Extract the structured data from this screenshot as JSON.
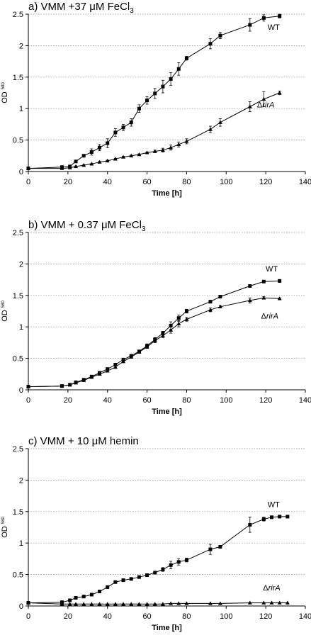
{
  "chart_data": [
    {
      "type": "line",
      "title": "a) VMM +37 μM FeCl",
      "title_sub": "3",
      "xlabel": "Time [h]",
      "ylabel": "OD",
      "ylabel_sub": "580",
      "xlim": [
        0,
        140
      ],
      "ylim": [
        0,
        2.5
      ],
      "xticks": [
        0,
        20,
        40,
        60,
        80,
        100,
        120,
        140
      ],
      "yticks": [
        0,
        0.5,
        1,
        1.5,
        2,
        2.5
      ],
      "ytick_labels": [
        "0",
        "0.5",
        "1",
        "1.5",
        "2",
        "2.5"
      ],
      "grid": "horizontal-dotted",
      "series": [
        {
          "name": "WT",
          "marker": "square",
          "x": [
            0,
            17,
            21,
            24,
            28,
            32,
            36,
            40,
            44,
            48,
            52,
            56,
            60,
            64,
            68,
            72,
            76,
            80,
            92,
            97,
            112,
            119,
            127
          ],
          "y": [
            0.05,
            0.07,
            0.08,
            0.16,
            0.25,
            0.31,
            0.38,
            0.45,
            0.62,
            0.7,
            0.78,
            1.0,
            1.13,
            1.24,
            1.35,
            1.47,
            1.63,
            1.8,
            2.03,
            2.16,
            2.33,
            2.44,
            2.47
          ],
          "err": [
            0,
            0.01,
            0.01,
            0.02,
            0.02,
            0.05,
            0.05,
            0.07,
            0.06,
            0.05,
            0.06,
            0.06,
            0.06,
            0.08,
            0.1,
            0.1,
            0.1,
            0.03,
            0.08,
            0.05,
            0.1,
            0.05,
            0.03
          ]
        },
        {
          "name": "ΔrirA",
          "marker": "triangle",
          "x": [
            0,
            17,
            21,
            24,
            28,
            32,
            36,
            40,
            44,
            48,
            52,
            56,
            60,
            64,
            68,
            72,
            76,
            80,
            92,
            97,
            112,
            119,
            127
          ],
          "y": [
            0.05,
            0.05,
            0.06,
            0.08,
            0.1,
            0.12,
            0.15,
            0.17,
            0.2,
            0.23,
            0.25,
            0.27,
            0.3,
            0.32,
            0.34,
            0.38,
            0.43,
            0.48,
            0.67,
            0.78,
            1.03,
            1.15,
            1.25
          ],
          "err": [
            0,
            0,
            0,
            0.01,
            0.01,
            0.01,
            0.01,
            0.01,
            0.01,
            0.01,
            0.01,
            0.01,
            0.01,
            0.02,
            0.03,
            0.04,
            0.04,
            0.04,
            0.05,
            0.06,
            0.08,
            0.12,
            0.03
          ]
        }
      ],
      "labels": [
        {
          "text": "WT",
          "series": 0,
          "x": 124,
          "y": 2.25
        },
        {
          "text": "ΔrirA",
          "series": 1,
          "x": 120,
          "y": 1.02
        }
      ]
    },
    {
      "type": "line",
      "title": "b) VMM + 0.37 μM FeCl",
      "title_sub": "3",
      "xlabel": "Time [h]",
      "ylabel": "OD",
      "ylabel_sub": "580",
      "xlim": [
        0,
        140
      ],
      "ylim": [
        0,
        2.5
      ],
      "xticks": [
        0,
        20,
        40,
        60,
        80,
        100,
        120,
        140
      ],
      "yticks": [
        0,
        0.5,
        1,
        1.5,
        2,
        2.5
      ],
      "ytick_labels": [
        "0",
        "0.5",
        "1",
        "1.5",
        "2",
        "2.5"
      ],
      "grid": "horizontal-dotted",
      "series": [
        {
          "name": "WT",
          "marker": "square",
          "x": [
            0,
            17,
            21,
            24,
            28,
            32,
            36,
            40,
            44,
            48,
            52,
            56,
            60,
            64,
            68,
            72,
            76,
            80,
            92,
            97,
            112,
            119,
            127
          ],
          "y": [
            0.05,
            0.06,
            0.08,
            0.12,
            0.16,
            0.21,
            0.27,
            0.33,
            0.4,
            0.48,
            0.54,
            0.61,
            0.7,
            0.8,
            0.9,
            1.02,
            1.14,
            1.25,
            1.4,
            1.48,
            1.65,
            1.72,
            1.73
          ],
          "err": [
            0,
            0,
            0.01,
            0.01,
            0.01,
            0.01,
            0.01,
            0.02,
            0.02,
            0.02,
            0.02,
            0.02,
            0.03,
            0.03,
            0.03,
            0.06,
            0.05,
            0.03,
            0.02,
            0.02,
            0.02,
            0.02,
            0.01
          ]
        },
        {
          "name": "ΔrirA",
          "marker": "triangle",
          "x": [
            0,
            17,
            21,
            24,
            28,
            32,
            36,
            40,
            44,
            48,
            52,
            56,
            60,
            64,
            68,
            72,
            76,
            80,
            92,
            97,
            112,
            119,
            127
          ],
          "y": [
            0.05,
            0.06,
            0.08,
            0.11,
            0.15,
            0.2,
            0.25,
            0.3,
            0.36,
            0.45,
            0.52,
            0.6,
            0.68,
            0.78,
            0.86,
            0.95,
            1.05,
            1.12,
            1.27,
            1.32,
            1.42,
            1.46,
            1.45
          ],
          "err": [
            0,
            0,
            0.01,
            0.01,
            0.01,
            0.01,
            0.01,
            0.02,
            0.02,
            0.02,
            0.02,
            0.02,
            0.02,
            0.03,
            0.03,
            0.05,
            0.05,
            0.03,
            0.03,
            0.02,
            0.04,
            0.02,
            0.01
          ]
        }
      ],
      "labels": [
        {
          "text": "WT",
          "series": 0,
          "x": 123,
          "y": 1.88
        },
        {
          "text": "ΔrirA",
          "series": 1,
          "x": 122,
          "y": 1.13
        }
      ]
    },
    {
      "type": "line",
      "title": "c) VMM + 10 μM  hemin",
      "title_sub": "",
      "xlabel": "Time [h]",
      "ylabel": "OD",
      "ylabel_sub": "580",
      "xlim": [
        0,
        140
      ],
      "ylim": [
        0,
        2.5
      ],
      "xticks": [
        0,
        20,
        40,
        60,
        80,
        100,
        120,
        140
      ],
      "yticks": [
        0,
        0.5,
        1,
        1.5,
        2,
        2.5
      ],
      "ytick_labels": [
        "0",
        "0.5",
        "1",
        "1.5",
        "2",
        "2.5"
      ],
      "grid": "horizontal-dotted",
      "series": [
        {
          "name": "WT",
          "marker": "square",
          "x": [
            0,
            17,
            21,
            24,
            28,
            32,
            36,
            40,
            44,
            48,
            52,
            56,
            60,
            64,
            68,
            72,
            76,
            80,
            92,
            97,
            112,
            119,
            123,
            127,
            131
          ],
          "y": [
            0.05,
            0.06,
            0.09,
            0.13,
            0.15,
            0.18,
            0.23,
            0.3,
            0.38,
            0.41,
            0.43,
            0.46,
            0.49,
            0.53,
            0.58,
            0.65,
            0.7,
            0.73,
            0.9,
            0.94,
            1.29,
            1.38,
            1.41,
            1.42,
            1.42
          ],
          "err": [
            0,
            0.01,
            0.01,
            0.01,
            0.01,
            0.01,
            0.02,
            0.02,
            0.02,
            0.02,
            0.02,
            0.02,
            0.02,
            0.02,
            0.03,
            0.06,
            0.05,
            0.03,
            0.08,
            0.02,
            0.12,
            0.03,
            0.02,
            0.02,
            0.01
          ]
        },
        {
          "name": "ΔrirA",
          "marker": "triangle",
          "x": [
            0,
            17,
            21,
            24,
            28,
            32,
            36,
            40,
            44,
            48,
            52,
            56,
            60,
            64,
            68,
            72,
            76,
            80,
            92,
            97,
            112,
            119,
            123,
            127,
            131
          ],
          "y": [
            0.05,
            0.03,
            0.03,
            0.03,
            0.03,
            0.03,
            0.03,
            0.03,
            0.03,
            0.03,
            0.03,
            0.03,
            0.03,
            0.03,
            0.03,
            0.04,
            0.04,
            0.04,
            0.04,
            0.04,
            0.05,
            0.05,
            0.05,
            0.05,
            0.05
          ],
          "err": [
            0,
            0,
            0,
            0,
            0,
            0,
            0,
            0,
            0,
            0,
            0,
            0,
            0,
            0,
            0,
            0,
            0,
            0,
            0,
            0,
            0,
            0,
            0,
            0,
            0
          ]
        }
      ],
      "labels": [
        {
          "text": "WT",
          "series": 0,
          "x": 124,
          "y": 1.57
        },
        {
          "text": "ΔrirA",
          "series": 1,
          "x": 123,
          "y": 0.25
        }
      ]
    }
  ]
}
